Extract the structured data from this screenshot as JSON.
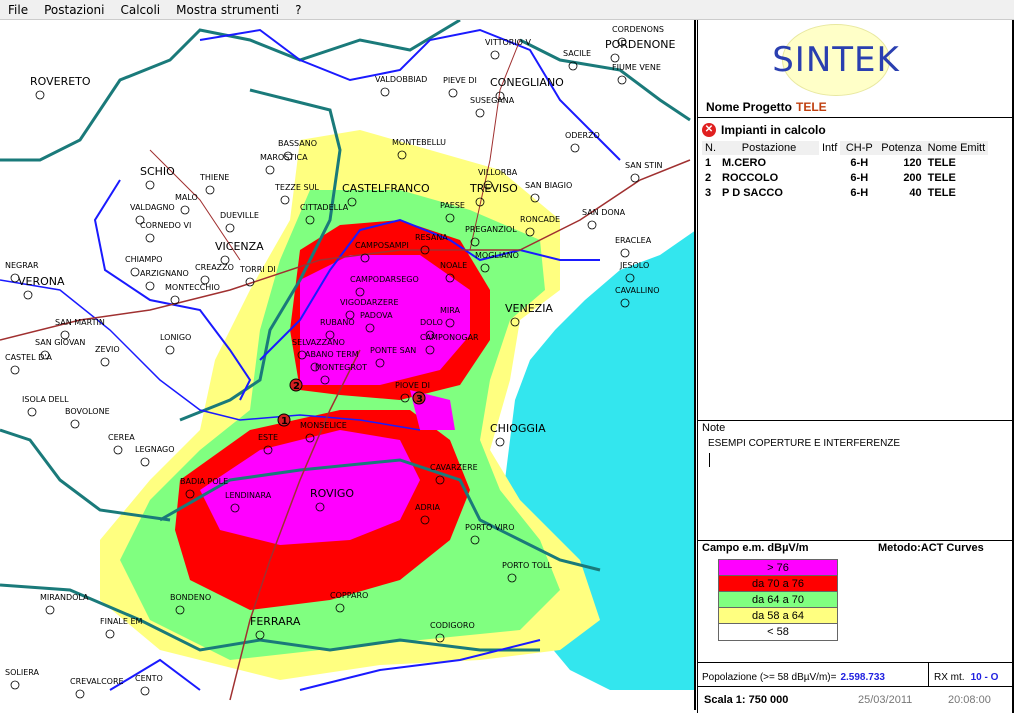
{
  "menu": [
    "File",
    "Postazioni",
    "Calcoli",
    "Mostra strumenti",
    "?"
  ],
  "logo": "SINTEK",
  "project": {
    "label": "Nome Progetto",
    "value": "TELE"
  },
  "impianti": {
    "title": "Impianti in calcolo",
    "columns": [
      "N.",
      "Postazione",
      "Intf",
      "CH-P",
      "Potenza",
      "Nome Emitt"
    ],
    "rows": [
      [
        "1",
        "M.CERO",
        "",
        "6-H",
        "120",
        "TELE"
      ],
      [
        "2",
        "ROCCOLO",
        "",
        "6-H",
        "200",
        "TELE"
      ],
      [
        "3",
        "P D SACCO",
        "",
        "6-H",
        "40",
        "TELE"
      ]
    ]
  },
  "note": {
    "label": "Note",
    "text": "ESEMPI COPERTURE E INTERFERENZE"
  },
  "legend": {
    "title": "Campo e.m. dBµV/m",
    "method": "Metodo:ACT Curves",
    "items": [
      {
        "label": "> 76",
        "color": "#ff00ff"
      },
      {
        "label": "da 70 a 76",
        "color": "#ff0000"
      },
      {
        "label": "da 64 a 70",
        "color": "#80ff80"
      },
      {
        "label": "da 58 a 64",
        "color": "#ffff80"
      },
      {
        "label": "< 58",
        "color": "#ffffff"
      }
    ]
  },
  "population": {
    "label": "Popolazione (>= 58 dBµV/m)=",
    "value": "2.598.733"
  },
  "rx": {
    "label": "RX mt.",
    "value": "10 - O"
  },
  "scale": "Scala 1:  750 000",
  "date": "25/03/2011",
  "time": "20:08:00",
  "colors": {
    "sea": "#33e6ee",
    "border": "#1a7a7a",
    "region": "#1a1aff",
    "road": "#a03030"
  },
  "map": {
    "sites": [
      "1",
      "2",
      "3"
    ],
    "cities": [
      "ROVERETO",
      "SCHIO",
      "THIENE",
      "VICENZA",
      "VERONA",
      "NEGRAR",
      "SAN MARTIN",
      "SAN GIOVAN",
      "ZEVIO",
      "CASTEL D'A",
      "LONIGO",
      "ISOLA DELL",
      "BOVOLONE",
      "CEREA",
      "LEGNAGO",
      "BASSANO",
      "MAROSTICA",
      "TEZZE SUL",
      "CASTELFRANCO",
      "MONTEBELLU",
      "VILLORBA",
      "TREVISO",
      "PAESE",
      "SAN BIAGIO",
      "RONCADE",
      "SAN DONA",
      "ERACLEA",
      "JESOLO",
      "CAVALLINO",
      "VENEZIA",
      "CHIOGGIA",
      "CAVARZERE",
      "ADRIA",
      "PORTO VIRO",
      "PORTO TOLL",
      "ROVIGO",
      "LENDINARA",
      "BADIA POLE",
      "FERRARA",
      "BONDENO",
      "CODIGORO",
      "COPPARO",
      "FINALE EM",
      "MIRANDOLA",
      "CREVALCORE",
      "CENTO",
      "SOLIERA",
      "CONEGLIANO",
      "SUSEGANA",
      "PIEVE DI",
      "VALDOBBIAD",
      "VITTORIO V",
      "PORDENONE",
      "SACILE",
      "CORDENONS",
      "FIUME VENE",
      "ODERZO",
      "SAN STIN",
      "CAMPOSAMPI",
      "CITTADELLA",
      "RESANA",
      "PREGANZIOL",
      "MOGLIANO",
      "CAMPODARSEGO",
      "VIGODARZERE",
      "RUBANO",
      "SELVAZZANO",
      "ABANO TERM",
      "MONTEGROT",
      "MONSELICE",
      "ESTE",
      "PIOVE DI",
      "CAMPONOGAR",
      "DOLO",
      "MIRA",
      "NOALE",
      "CREAZZO",
      "TORRI DI",
      "CHIAMPO",
      "ARZIGNANO",
      "MONTECCHIO",
      "VALDAGNO",
      "MALO",
      "DUEVILLE",
      "CORNEDO VI",
      "PADOVA",
      "PONTE SAN"
    ]
  }
}
